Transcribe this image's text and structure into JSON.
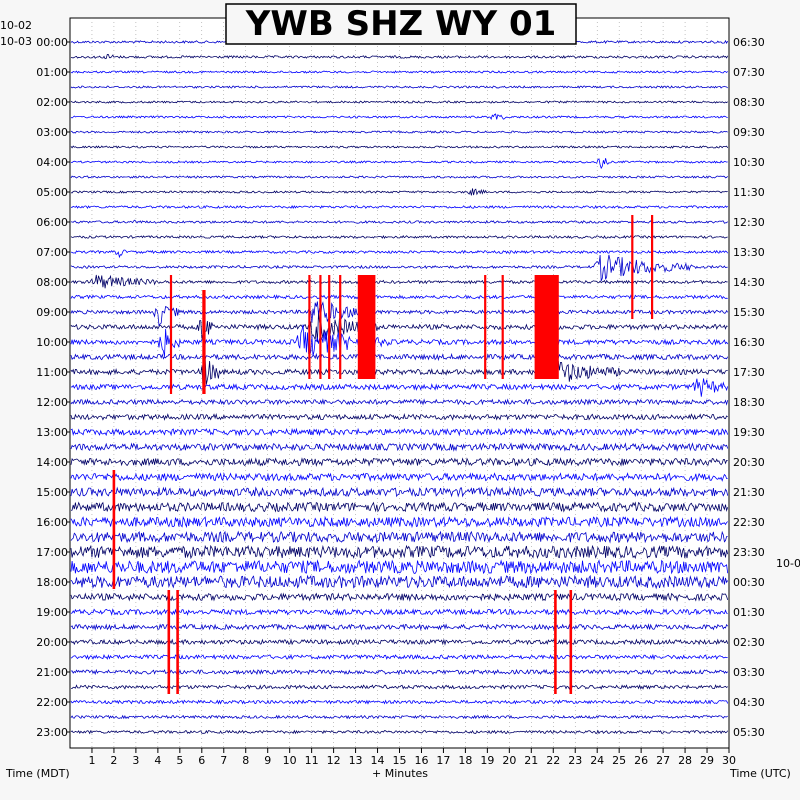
{
  "chart_data": {
    "type": "line",
    "title": "YWB SHZ WY 01",
    "xlabel": "+ Minutes",
    "left_axis_label": "Time (MDT)",
    "right_axis_label": "Time (UTC)",
    "date_labels": {
      "left_top": "10-02",
      "left_first_row": "10-03",
      "right_after_midnight": "10-0"
    },
    "x_ticks": [
      1,
      2,
      3,
      4,
      5,
      6,
      7,
      8,
      9,
      10,
      11,
      12,
      13,
      14,
      15,
      16,
      17,
      18,
      19,
      20,
      21,
      22,
      23,
      24,
      25,
      26,
      27,
      28,
      29,
      30
    ],
    "xlim": [
      0,
      30
    ],
    "rows_per_hour": 2,
    "hour_labels_mdt": [
      "00:00",
      "01:00",
      "02:00",
      "03:00",
      "04:00",
      "05:00",
      "06:00",
      "07:00",
      "08:00",
      "09:00",
      "10:00",
      "11:00",
      "12:00",
      "13:00",
      "14:00",
      "15:00",
      "16:00",
      "17:00",
      "18:00",
      "19:00",
      "20:00",
      "21:00",
      "22:00",
      "23:00"
    ],
    "hour_labels_utc": [
      "06:30",
      "07:30",
      "08:30",
      "09:30",
      "10:30",
      "11:30",
      "12:30",
      "13:30",
      "14:30",
      "15:30",
      "16:30",
      "17:30",
      "18:30",
      "19:30",
      "20:30",
      "21:30",
      "22:30",
      "23:30",
      "00:30",
      "01:30",
      "02:30",
      "03:30",
      "04:30",
      "05:30"
    ],
    "row_colors": [
      "#0000cc",
      "#000066",
      "#0000ff"
    ],
    "clip_color": "#ff0000",
    "row_noise_amplitude": [
      1.2,
      1.2,
      1.0,
      1.0,
      1.0,
      1.0,
      1.0,
      1.0,
      1.0,
      1.0,
      1.0,
      1.2,
      1.2,
      1.2,
      1.3,
      1.3,
      1.5,
      1.6,
      1.8,
      2.4,
      2.4,
      2.6,
      2.6,
      2.6,
      2.4,
      2.6,
      3.0,
      3.4,
      3.6,
      3.6,
      4.2,
      4.4,
      4.8,
      5.2,
      6.0,
      6.4,
      6.0,
      3.4,
      2.6,
      2.4,
      2.2,
      2.0,
      2.0,
      1.8,
      1.6,
      1.4,
      1.4,
      1.4
    ],
    "events": [
      {
        "row": 1,
        "minute": 1.7,
        "amplitude": 6,
        "duration": 0.3
      },
      {
        "row": 5,
        "minute": 19.3,
        "amplitude": 5,
        "duration": 0.6
      },
      {
        "row": 8,
        "minute": 24.1,
        "amplitude": 12,
        "duration": 0.4
      },
      {
        "row": 10,
        "minute": 18.2,
        "amplitude": 4,
        "duration": 0.8
      },
      {
        "row": 12,
        "minute": 3.0,
        "amplitude": 5,
        "duration": 0.2
      },
      {
        "row": 14,
        "minute": 2.2,
        "amplitude": 6,
        "duration": 0.3
      },
      {
        "row": 15,
        "minute": 24.0,
        "amplitude": 14,
        "duration": 4.5
      },
      {
        "row": 16,
        "minute": 1.0,
        "amplitude": 8,
        "duration": 3.0
      },
      {
        "row": 18,
        "minute": 4.0,
        "amplitude": 14,
        "duration": 1.0
      },
      {
        "row": 18,
        "minute": 11.0,
        "amplitude": 14,
        "duration": 2.5
      },
      {
        "row": 19,
        "minute": 6.0,
        "amplitude": 16,
        "duration": 0.6
      },
      {
        "row": 19,
        "minute": 11.0,
        "amplitude": 16,
        "duration": 3.0
      },
      {
        "row": 20,
        "minute": 4.2,
        "amplitude": 16,
        "duration": 0.8
      },
      {
        "row": 20,
        "minute": 10.5,
        "amplitude": 16,
        "duration": 4.0
      },
      {
        "row": 22,
        "minute": 6.0,
        "amplitude": 18,
        "duration": 1.0
      },
      {
        "row": 22,
        "minute": 22.0,
        "amplitude": 12,
        "duration": 3.0
      },
      {
        "row": 23,
        "minute": 28.5,
        "amplitude": 10,
        "duration": 1.5
      }
    ],
    "clip_bars": [
      {
        "start_row": 16,
        "end_row": 23,
        "minute": 4.6,
        "width": 0.1
      },
      {
        "start_row": 17,
        "end_row": 23,
        "minute": 6.1,
        "width": 0.15
      },
      {
        "start_row": 16,
        "end_row": 22,
        "minute": 10.9,
        "width": 0.1
      },
      {
        "start_row": 16,
        "end_row": 22,
        "minute": 11.4,
        "width": 0.1
      },
      {
        "start_row": 16,
        "end_row": 22,
        "minute": 11.8,
        "width": 0.1
      },
      {
        "start_row": 16,
        "end_row": 22,
        "minute": 12.3,
        "width": 0.1
      },
      {
        "start_row": 16,
        "end_row": 22,
        "minute": 13.5,
        "width": 0.8
      },
      {
        "start_row": 16,
        "end_row": 22,
        "minute": 18.9,
        "width": 0.1
      },
      {
        "start_row": 16,
        "end_row": 22,
        "minute": 19.7,
        "width": 0.1
      },
      {
        "start_row": 16,
        "end_row": 22,
        "minute": 21.7,
        "width": 1.1
      },
      {
        "start_row": 12,
        "end_row": 18,
        "minute": 25.6,
        "width": 0.1
      },
      {
        "start_row": 12,
        "end_row": 18,
        "minute": 26.5,
        "width": 0.1
      },
      {
        "start_row": 29,
        "end_row": 36,
        "minute": 2.0,
        "width": 0.12
      },
      {
        "start_row": 37,
        "end_row": 43,
        "minute": 4.5,
        "width": 0.12
      },
      {
        "start_row": 37,
        "end_row": 43,
        "minute": 4.9,
        "width": 0.12
      },
      {
        "start_row": 37,
        "end_row": 43,
        "minute": 22.1,
        "width": 0.12
      },
      {
        "start_row": 37,
        "end_row": 43,
        "minute": 22.8,
        "width": 0.12
      }
    ],
    "grid": true
  }
}
